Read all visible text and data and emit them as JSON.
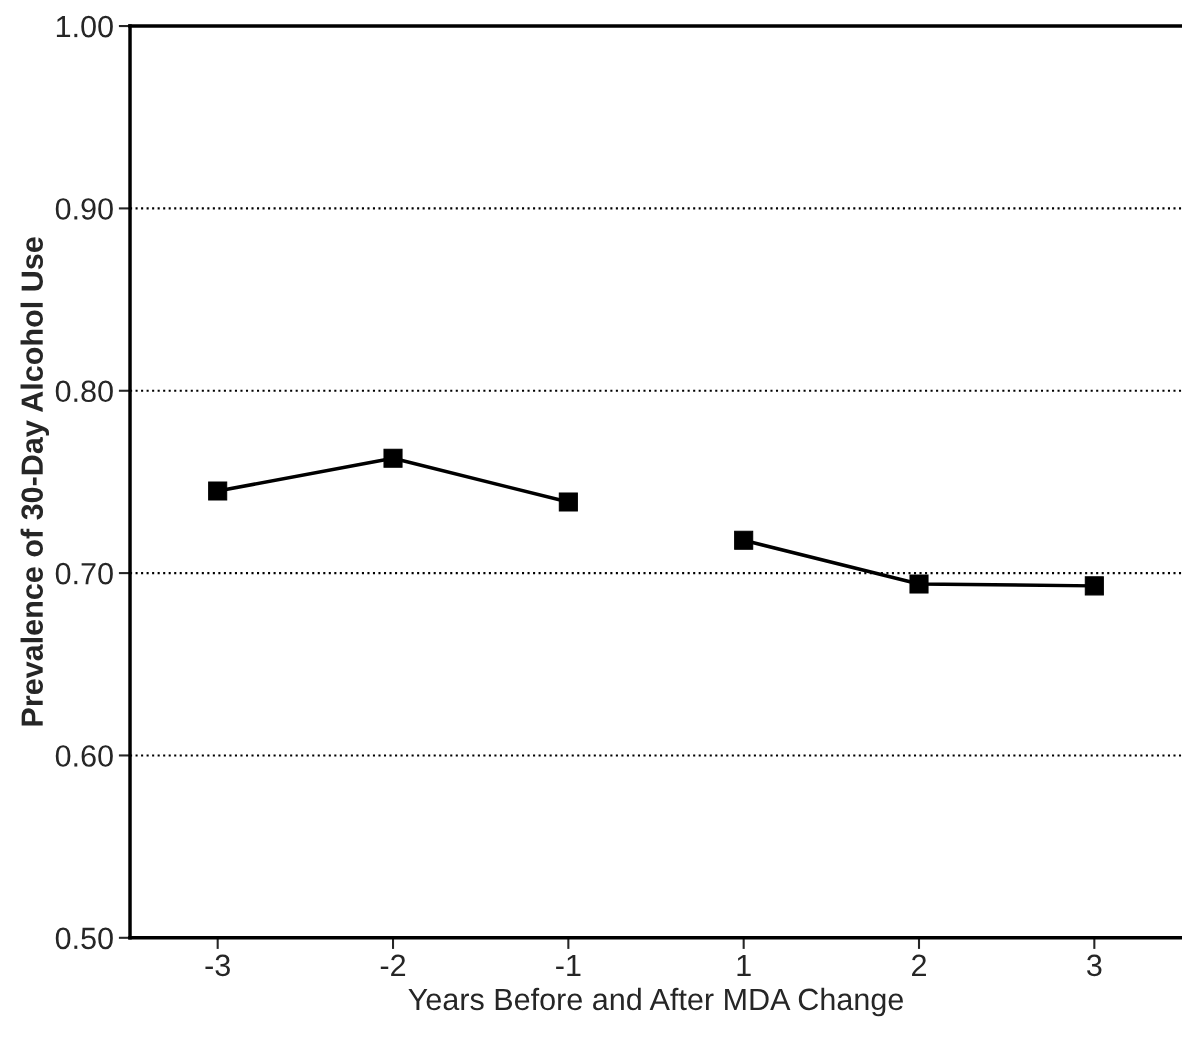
{
  "chart_data": {
    "type": "line",
    "xlabel": "Years Before and After MDA Change",
    "ylabel": "Prevalence of 30-Day Alcohol Use",
    "categories": [
      "-3",
      "-2",
      "-1",
      "1",
      "2",
      "3"
    ],
    "series": [
      {
        "color": "#000000",
        "values": [
          0.745,
          0.763,
          0.739,
          null,
          null,
          null
        ]
      },
      {
        "color": "#000000",
        "values": [
          null,
          null,
          null,
          0.718,
          0.694,
          0.693
        ]
      }
    ],
    "ylim": [
      0.5,
      1.0
    ],
    "yticks": [
      {
        "value": 0.5,
        "label": "0.50"
      },
      {
        "value": 0.6,
        "label": "0.60"
      },
      {
        "value": 0.7,
        "label": "0.70"
      },
      {
        "value": 0.8,
        "label": "0.80"
      },
      {
        "value": 0.9,
        "label": "0.90"
      },
      {
        "value": 1.0,
        "label": "1.00"
      }
    ],
    "grid": "y",
    "marker": "square",
    "line_style": "solid",
    "legend": false
  }
}
